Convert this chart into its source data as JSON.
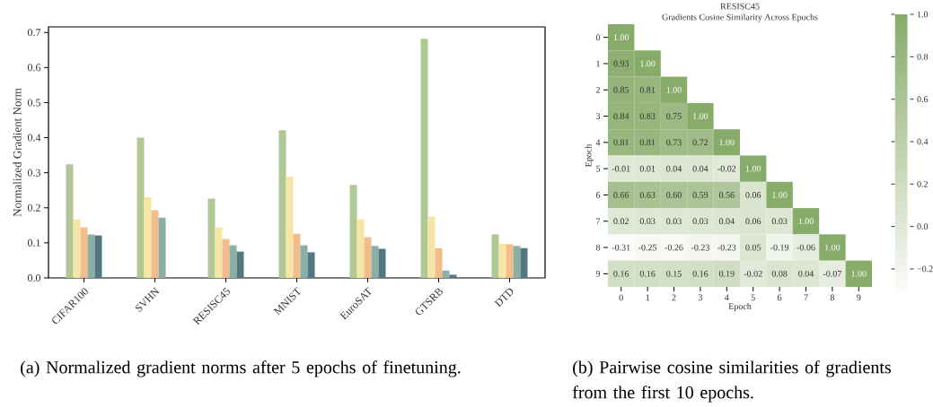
{
  "chart_data": [
    {
      "type": "bar",
      "ylabel": "Normalized Gradient Norm",
      "categories": [
        "CIFAR100",
        "SVHN",
        "RESISC45",
        "MNIST",
        "EuroSAT",
        "GTSRB",
        "DTD"
      ],
      "series": [
        {
          "color": "#b0c994",
          "values": [
            0.324,
            0.4,
            0.226,
            0.421,
            0.265,
            0.682,
            0.124
          ]
        },
        {
          "color": "#f5e6a6",
          "values": [
            0.167,
            0.231,
            0.144,
            0.288,
            0.167,
            0.175,
            0.098
          ]
        },
        {
          "color": "#f5bc8b",
          "values": [
            0.144,
            0.193,
            0.111,
            0.126,
            0.116,
            0.085,
            0.096
          ]
        },
        {
          "color": "#8aafa4",
          "values": [
            0.124,
            0.172,
            0.093,
            0.093,
            0.091,
            0.021,
            0.091
          ]
        },
        {
          "color": "#527780",
          "values": [
            0.121,
            null,
            0.075,
            0.073,
            0.083,
            0.009,
            0.085
          ]
        }
      ],
      "ylim": [
        0,
        0.716
      ],
      "yticks": [
        {
          "value": 0,
          "label": "0.0"
        },
        {
          "value": 0.1,
          "label": "0.1"
        },
        {
          "value": 0.2,
          "label": "0.2"
        },
        {
          "value": 0.3,
          "label": "0.3"
        },
        {
          "value": 0.4,
          "label": "0.4"
        },
        {
          "value": 0.5,
          "label": "0.5"
        },
        {
          "value": 0.6,
          "label": "0.6"
        },
        {
          "value": 0.7,
          "label": "0.7"
        }
      ],
      "annotations": [
        "(a) Normalized gradient norms after 5 epochs of finetuning."
      ]
    },
    {
      "type": "heatmap",
      "title": "RESISC45",
      "subtitle": "Gradients Cosine Similarity Across Epochs",
      "xlabel": "Epoch",
      "ylabel": "Epoch",
      "categories": [
        "0",
        "1",
        "2",
        "3",
        "4",
        "5",
        "6",
        "7",
        "8",
        "9"
      ],
      "y_categories": [
        "0",
        "1",
        "2",
        "3",
        "4",
        "5",
        "6",
        "7",
        "8",
        "9"
      ],
      "cells": [
        [
          1.0,
          null,
          null,
          null,
          null,
          null,
          null,
          null,
          null,
          null
        ],
        [
          0.93,
          1.0,
          null,
          null,
          null,
          null,
          null,
          null,
          null,
          null
        ],
        [
          0.85,
          0.81,
          1.0,
          null,
          null,
          null,
          null,
          null,
          null,
          null
        ],
        [
          0.84,
          0.83,
          0.75,
          1.0,
          null,
          null,
          null,
          null,
          null,
          null
        ],
        [
          0.81,
          0.81,
          0.73,
          0.72,
          1.0,
          null,
          null,
          null,
          null,
          null
        ],
        [
          -0.01,
          0.01,
          0.04,
          0.04,
          -0.02,
          1.0,
          null,
          null,
          null,
          null
        ],
        [
          0.66,
          0.63,
          0.6,
          0.59,
          0.56,
          0.06,
          1.0,
          null,
          null,
          null
        ],
        [
          0.02,
          0.03,
          0.03,
          0.03,
          0.04,
          0.06,
          0.03,
          1.0,
          null,
          null
        ],
        [
          -0.31,
          -0.25,
          -0.26,
          -0.23,
          -0.23,
          0.05,
          -0.19,
          -0.06,
          1.0,
          null
        ],
        [
          0.16,
          0.16,
          0.15,
          0.16,
          0.19,
          -0.02,
          0.08,
          0.04,
          -0.07,
          1.0
        ]
      ],
      "cell_labels": [
        [
          "1.00",
          null,
          null,
          null,
          null,
          null,
          null,
          null,
          null,
          null
        ],
        [
          "0.93",
          "1.00",
          null,
          null,
          null,
          null,
          null,
          null,
          null,
          null
        ],
        [
          "0.85",
          "0.81",
          "1.00",
          null,
          null,
          null,
          null,
          null,
          null,
          null
        ],
        [
          "0.84",
          "0.83",
          "0.75",
          "1.00",
          null,
          null,
          null,
          null,
          null,
          null
        ],
        [
          "0.81",
          "0.81",
          "0.73",
          "0.72",
          "1.00",
          null,
          null,
          null,
          null,
          null
        ],
        [
          "-0.01",
          "0.01",
          "0.04",
          "0.04",
          "-0.02",
          "1.00",
          null,
          null,
          null,
          null
        ],
        [
          "0.66",
          "0.63",
          "0.60",
          "0.59",
          "0.56",
          "0.06",
          "1.00",
          null,
          null,
          null
        ],
        [
          "0.02",
          "0.03",
          "0.03",
          "0.03",
          "0.04",
          "0.06",
          "0.03",
          "1.00",
          null,
          null
        ],
        [
          "-0.31",
          "-0.25",
          "-0.26",
          "-0.23",
          "-0.23",
          "0.05",
          "-0.19",
          "-0.06",
          "1.00",
          null
        ],
        [
          "0.16",
          "0.16",
          "0.15",
          "0.16",
          "0.19",
          "-0.02",
          "0.08",
          "0.04",
          "-0.07",
          "1.00"
        ]
      ],
      "clim": [
        -0.31,
        1.0
      ],
      "cticks": [
        {
          "value": -0.2,
          "label": "−0.2"
        },
        {
          "value": 0.0,
          "label": "0.0"
        },
        {
          "value": 0.2,
          "label": "0.2"
        },
        {
          "value": 0.4,
          "label": "0.4"
        },
        {
          "value": 0.6,
          "label": "0.6"
        },
        {
          "value": 0.8,
          "label": "0.8"
        },
        {
          "value": 1.0,
          "label": "1.0"
        }
      ],
      "annotations": [
        "(b) Pairwise cosine similarities of gradients from the first 10 epochs."
      ]
    }
  ]
}
